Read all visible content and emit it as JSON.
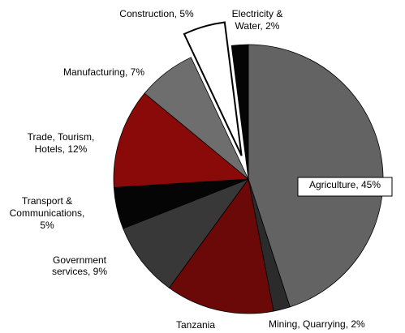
{
  "chart_data": {
    "type": "pie",
    "title": "",
    "subtitle": "Tanzania",
    "unit": "%",
    "slices": [
      {
        "label": "Agriculture",
        "value": 45,
        "color": "#636363"
      },
      {
        "label": "Mining, Quarrying",
        "value": 2,
        "color": "#2b2b2b"
      },
      {
        "label": "",
        "value": 13,
        "color": "#6b0808"
      },
      {
        "label": "Government services",
        "value": 9,
        "color": "#383838"
      },
      {
        "label": "Transport & Communications",
        "value": 5,
        "color": "#050505"
      },
      {
        "label": "Trade, Tourism, Hotels",
        "value": 12,
        "color": "#8a0a0a"
      },
      {
        "label": "Manufacturing",
        "value": 7,
        "color": "#6e6e6e"
      },
      {
        "label": "Construction",
        "value": 5,
        "color": "#ffffff",
        "exploded": true
      },
      {
        "label": "Electricity & Water",
        "value": 2,
        "color": "#050505"
      }
    ],
    "labels": [
      {
        "lines": [
          "Agriculture, 45%"
        ],
        "boxed": true
      },
      {
        "lines": [
          "Mining, Quarrying, 2%"
        ]
      },
      {
        "lines": [
          "Government",
          "services, 9%"
        ]
      },
      {
        "lines": [
          "Transport &",
          "Communications,",
          "5%"
        ]
      },
      {
        "lines": [
          "Trade, Tourism,",
          "Hotels, 12%"
        ]
      },
      {
        "lines": [
          "Manufacturing, 7%"
        ]
      },
      {
        "lines": [
          "Construction, 5%"
        ]
      },
      {
        "lines": [
          "Electricity &",
          "Water, 2%"
        ]
      }
    ]
  }
}
